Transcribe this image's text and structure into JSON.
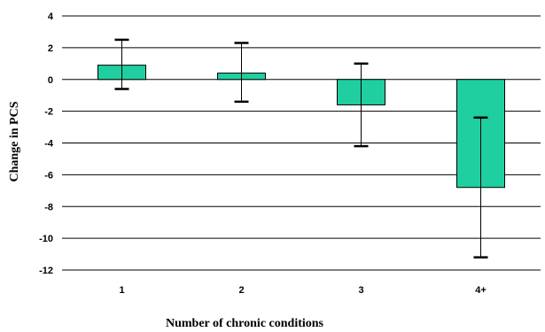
{
  "chart_data": {
    "type": "bar",
    "title": "",
    "xlabel": "Number of chronic conditions",
    "ylabel": "Change in PCS",
    "categories": [
      "1",
      "2",
      "3",
      "4+"
    ],
    "values": [
      0.9,
      0.4,
      -1.6,
      -6.8
    ],
    "error_low": [
      -0.6,
      -1.4,
      -4.2,
      -11.2
    ],
    "error_high": [
      2.5,
      2.3,
      1.0,
      -2.4
    ],
    "ylim": [
      -12,
      4
    ],
    "y_ticks": [
      4,
      2,
      0,
      -2,
      -4,
      -6,
      -8,
      -10,
      -12
    ],
    "grid": true,
    "bar_color": "#1fcf9f"
  }
}
